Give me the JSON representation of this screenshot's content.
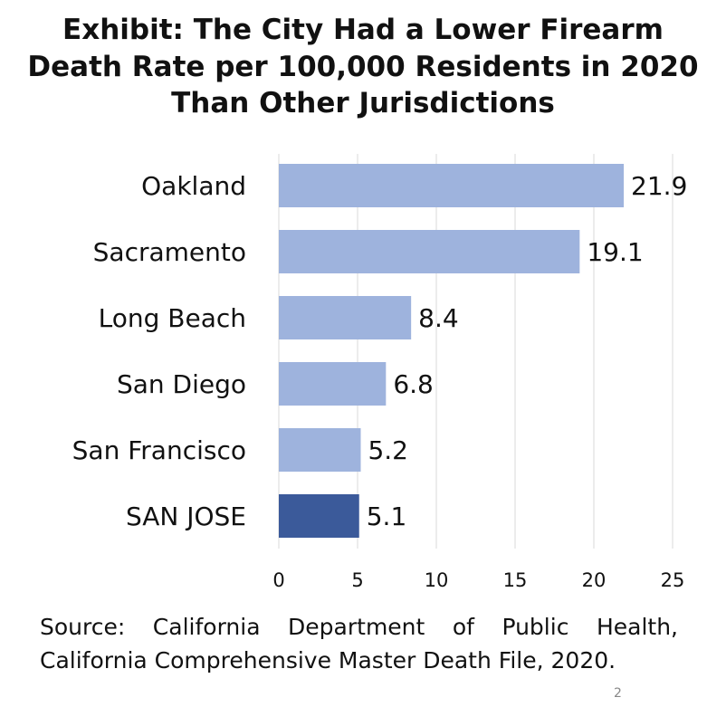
{
  "title_lines": [
    "Exhibit: The City Had a Lower Firearm",
    "Death Rate per 100,000 Residents in 2020",
    "Than Other Jurisdictions"
  ],
  "chart_data": {
    "type": "bar",
    "orientation": "horizontal",
    "title": "Exhibit: The City Had a Lower Firearm Death Rate per 100,000 Residents in 2020 Than Other Jurisdictions",
    "categories": [
      "Oakland",
      "Sacramento",
      "Long Beach",
      "San Diego",
      "San Francisco",
      "SAN JOSE"
    ],
    "values": [
      21.9,
      19.1,
      8.4,
      6.8,
      5.2,
      5.1
    ],
    "value_labels": [
      "21.9",
      "19.1",
      "8.4",
      "6.8",
      "5.2",
      "5.1"
    ],
    "highlighted_category": "SAN JOSE",
    "xlim": [
      0,
      25
    ],
    "x_ticks": [
      0,
      5,
      10,
      15,
      20,
      25
    ],
    "xlabel": "",
    "ylabel": "",
    "grid": "vertical",
    "legend": "none",
    "colors": {
      "bar": "#9eb3dd",
      "highlight": "#3b5a9a",
      "grid": "#d9d9d9",
      "text": "#111111"
    }
  },
  "source": {
    "line1": "Source: California Department of Public Health,",
    "line2": "California Comprehensive Master Death File, 2020."
  },
  "page_number": "2"
}
